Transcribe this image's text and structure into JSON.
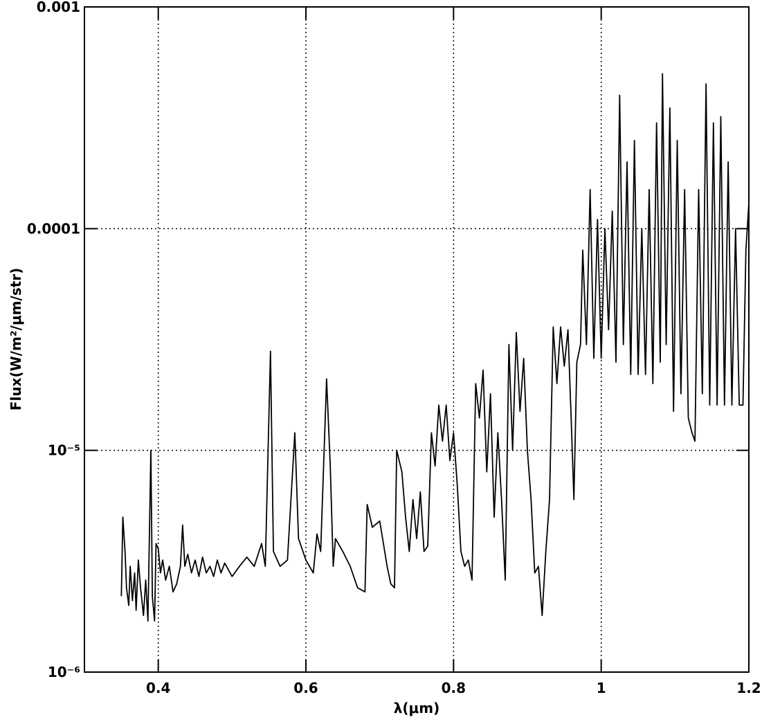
{
  "chart_data": {
    "type": "line",
    "xlabel": "λ(μm)",
    "ylabel": "Flux(W/m²/μm/str)",
    "xlim": [
      0.3,
      1.2
    ],
    "ylim": [
      1e-06,
      0.001
    ],
    "yscale": "log",
    "xticks": [
      0.4,
      0.6,
      0.8,
      1,
      1.2
    ],
    "yticks": [
      {
        "value": 1e-06,
        "label": "10⁻⁶"
      },
      {
        "value": 1e-05,
        "label": "10⁻⁵"
      },
      0.0001,
      0.001
    ],
    "grid": true,
    "x": [
      0.35,
      0.352,
      0.355,
      0.357,
      0.36,
      0.362,
      0.365,
      0.368,
      0.37,
      0.373,
      0.376,
      0.38,
      0.383,
      0.386,
      0.39,
      0.392,
      0.395,
      0.397,
      0.4,
      0.403,
      0.406,
      0.41,
      0.415,
      0.42,
      0.425,
      0.43,
      0.433,
      0.436,
      0.44,
      0.445,
      0.45,
      0.455,
      0.46,
      0.465,
      0.47,
      0.475,
      0.48,
      0.485,
      0.49,
      0.5,
      0.51,
      0.52,
      0.53,
      0.54,
      0.545,
      0.552,
      0.556,
      0.565,
      0.575,
      0.585,
      0.59,
      0.6,
      0.61,
      0.615,
      0.62,
      0.628,
      0.633,
      0.637,
      0.64,
      0.65,
      0.66,
      0.67,
      0.68,
      0.683,
      0.69,
      0.7,
      0.71,
      0.715,
      0.72,
      0.723,
      0.73,
      0.735,
      0.74,
      0.745,
      0.75,
      0.755,
      0.76,
      0.765,
      0.77,
      0.775,
      0.78,
      0.785,
      0.79,
      0.795,
      0.8,
      0.805,
      0.81,
      0.815,
      0.82,
      0.825,
      0.83,
      0.835,
      0.84,
      0.845,
      0.85,
      0.855,
      0.86,
      0.865,
      0.87,
      0.875,
      0.88,
      0.885,
      0.89,
      0.895,
      0.9,
      0.905,
      0.91,
      0.915,
      0.92,
      0.925,
      0.93,
      0.935,
      0.94,
      0.945,
      0.95,
      0.955,
      0.96,
      0.963,
      0.967,
      0.972,
      0.975,
      0.98,
      0.985,
      0.99,
      0.995,
      1.0,
      1.005,
      1.01,
      1.015,
      1.02,
      1.025,
      1.03,
      1.035,
      1.04,
      1.045,
      1.05,
      1.055,
      1.06,
      1.065,
      1.07,
      1.075,
      1.08,
      1.083,
      1.088,
      1.093,
      1.098,
      1.103,
      1.108,
      1.113,
      1.118,
      1.123,
      1.127,
      1.132,
      1.137,
      1.142,
      1.147,
      1.152,
      1.157,
      1.162,
      1.167,
      1.172,
      1.177,
      1.182,
      1.187,
      1.192,
      1.196,
      1.2
    ],
    "series": [
      {
        "color": "#000000",
        "values": [
          2.2e-06,
          5e-06,
          3.5e-06,
          2.4e-06,
          2e-06,
          3e-06,
          2.1e-06,
          2.8e-06,
          1.9e-06,
          3.2e-06,
          2.4e-06,
          1.8e-06,
          2.6e-06,
          1.7e-06,
          1e-05,
          2.2e-06,
          1.7e-06,
          3.8e-06,
          3.6e-06,
          2.8e-06,
          3.2e-06,
          2.6e-06,
          3e-06,
          2.3e-06,
          2.5e-06,
          3e-06,
          4.6e-06,
          3e-06,
          3.4e-06,
          2.8e-06,
          3.2e-06,
          2.7e-06,
          3.3e-06,
          2.8e-06,
          3e-06,
          2.7e-06,
          3.2e-06,
          2.8e-06,
          3.1e-06,
          2.7e-06,
          3e-06,
          3.3e-06,
          3e-06,
          3.8e-06,
          3e-06,
          2.8e-05,
          3.5e-06,
          3e-06,
          3.2e-06,
          1.2e-05,
          4e-06,
          3.2e-06,
          2.8e-06,
          4.2e-06,
          3.5e-06,
          2.1e-05,
          8.5e-06,
          3e-06,
          4e-06,
          3.5e-06,
          3e-06,
          2.4e-06,
          2.3e-06,
          5.7e-06,
          4.5e-06,
          4.8e-06,
          3e-06,
          2.5e-06,
          2.4e-06,
          1e-05,
          8e-06,
          5e-06,
          3.5e-06,
          6e-06,
          4e-06,
          6.5e-06,
          3.5e-06,
          3.7e-06,
          1.2e-05,
          8.5e-06,
          1.6e-05,
          1.1e-05,
          1.6e-05,
          9e-06,
          1.2e-05,
          7e-06,
          3.5e-06,
          3e-06,
          3.2e-06,
          2.6e-06,
          2e-05,
          1.4e-05,
          2.3e-05,
          8e-06,
          1.8e-05,
          5e-06,
          1.2e-05,
          6e-06,
          2.6e-06,
          3e-05,
          1e-05,
          3.4e-05,
          1.5e-05,
          2.6e-05,
          1e-05,
          6e-06,
          2.8e-06,
          3e-06,
          1.8e-06,
          3.5e-06,
          6e-06,
          3.6e-05,
          2e-05,
          3.6e-05,
          2.4e-05,
          3.5e-05,
          1.2e-05,
          6e-06,
          2.5e-05,
          3e-05,
          8e-05,
          3e-05,
          0.00015,
          2.6e-05,
          0.00011,
          2.6e-05,
          0.0001,
          3.5e-05,
          0.00012,
          2.5e-05,
          0.0004,
          3e-05,
          0.0002,
          2.2e-05,
          0.00025,
          2.2e-05,
          0.0001,
          2.2e-05,
          0.00015,
          2e-05,
          0.0003,
          2.5e-05,
          0.0005,
          3e-05,
          0.00035,
          1.5e-05,
          0.00025,
          1.8e-05,
          0.00015,
          1.4e-05,
          1.2e-05,
          1.1e-05,
          0.00015,
          1.8e-05,
          0.00045,
          1.6e-05,
          0.0003,
          1.6e-05,
          0.00032,
          1.6e-05,
          0.0002,
          1.6e-05,
          0.0001,
          1.6e-05,
          1.6e-05,
          8e-05,
          0.00013
        ]
      }
    ]
  }
}
